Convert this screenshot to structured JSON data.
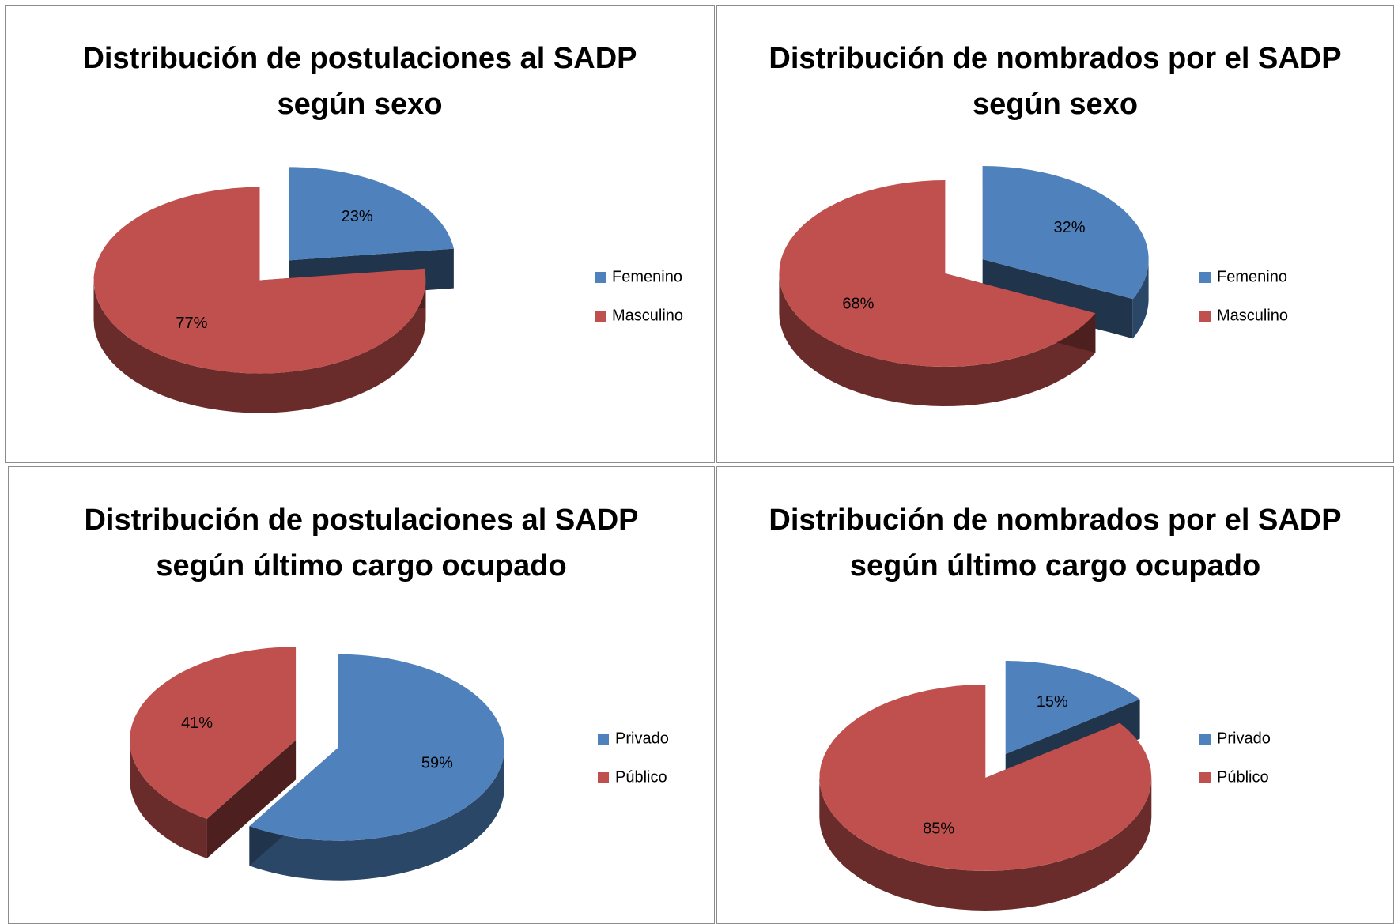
{
  "chart_data": [
    {
      "type": "pie",
      "title": "Distribución de postulaciones al SADP según sexo",
      "categories": [
        "Femenino",
        "Masculino"
      ],
      "values": [
        23,
        77
      ],
      "value_labels": [
        "23%",
        "77%"
      ],
      "colors": [
        "#4f81bd",
        "#c0504d"
      ]
    },
    {
      "type": "pie",
      "title": "Distribución de nombrados por el SADP según sexo",
      "categories": [
        "Femenino",
        "Masculino"
      ],
      "values": [
        32,
        68
      ],
      "value_labels": [
        "32%",
        "68%"
      ],
      "colors": [
        "#4f81bd",
        "#c0504d"
      ]
    },
    {
      "type": "pie",
      "title": "Distribución de postulaciones al SADP según último cargo ocupado",
      "categories": [
        "Privado",
        "Público"
      ],
      "values": [
        59,
        41
      ],
      "value_labels": [
        "59%",
        "41%"
      ],
      "colors": [
        "#4f81bd",
        "#c0504d"
      ]
    },
    {
      "type": "pie",
      "title": "Distribución de nombrados por el SADP según último cargo ocupado",
      "categories": [
        "Privado",
        "Público"
      ],
      "values": [
        15,
        85
      ],
      "value_labels": [
        "15%",
        "85%"
      ],
      "colors": [
        "#4f81bd",
        "#c0504d"
      ]
    }
  ]
}
